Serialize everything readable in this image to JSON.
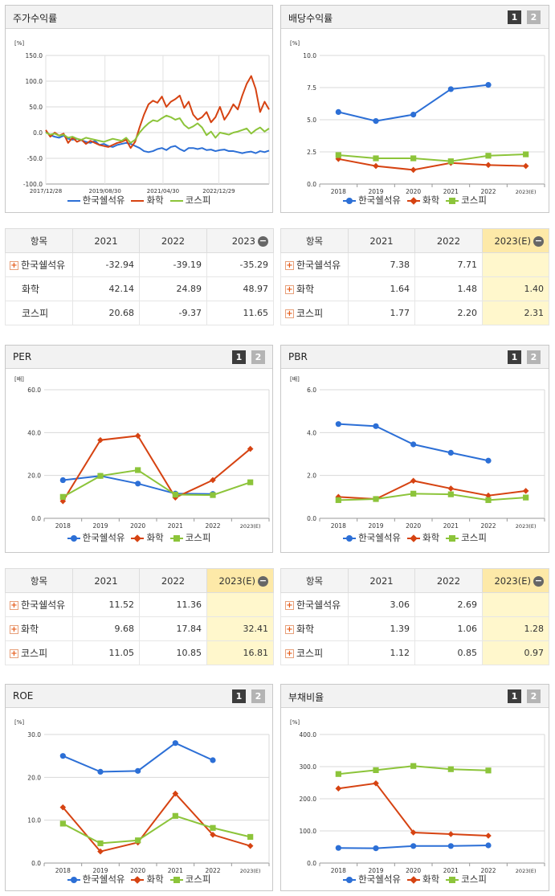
{
  "colors": {
    "company": "#2c6fd6",
    "industry": "#d64312",
    "kospi": "#8cc43a"
  },
  "legend": [
    "한국쉘석유",
    "화학",
    "코스피"
  ],
  "tabs": [
    "1",
    "2"
  ],
  "panels": {
    "price": {
      "title": "주가수익률",
      "unit": "[%]",
      "chart_data": {
        "type": "line",
        "ylim": [
          -100,
          150
        ],
        "yticks": [
          "150.0",
          "100.0",
          "50.0",
          "0.0",
          "-50.0",
          "-100.0"
        ],
        "xticks": [
          "2017/12/28",
          "2019/08/30",
          "2021/04/30",
          "2022/12/29"
        ],
        "x_range": [
          0,
          100
        ],
        "xtick_pos": [
          0,
          26.5,
          52.5,
          77.5
        ],
        "series": [
          {
            "name": "한국쉘석유",
            "x": [
              0,
              2,
              4,
              6,
              8,
              10,
              12,
              14,
              16,
              18,
              20,
              22,
              24,
              26,
              28,
              30,
              32,
              34,
              36,
              38,
              40,
              42,
              44,
              46,
              48,
              50,
              52,
              54,
              56,
              58,
              60,
              62,
              64,
              66,
              68,
              70,
              72,
              74,
              76,
              78,
              80,
              82,
              84,
              86,
              88,
              90,
              92,
              94,
              96,
              98,
              100
            ],
            "values": [
              2,
              -5,
              -8,
              -10,
              -6,
              -12,
              -14,
              -12,
              -15,
              -18,
              -20,
              -16,
              -24,
              -22,
              -26,
              -28,
              -24,
              -22,
              -20,
              -22,
              -26,
              -30,
              -36,
              -38,
              -36,
              -32,
              -30,
              -34,
              -28,
              -26,
              -32,
              -36,
              -30,
              -30,
              -32,
              -30,
              -34,
              -33,
              -36,
              -34,
              -33,
              -36,
              -36,
              -38,
              -40,
              -38,
              -37,
              -40,
              -36,
              -38,
              -35
            ]
          },
          {
            "name": "화학",
            "x": [
              0,
              2,
              4,
              6,
              8,
              10,
              12,
              14,
              16,
              18,
              20,
              22,
              24,
              26,
              28,
              30,
              32,
              34,
              36,
              38,
              40,
              42,
              44,
              46,
              48,
              50,
              52,
              54,
              56,
              58,
              60,
              62,
              64,
              66,
              68,
              70,
              72,
              74,
              76,
              78,
              80,
              82,
              84,
              86,
              88,
              90,
              92,
              94,
              96,
              98,
              100
            ],
            "values": [
              5,
              -8,
              0,
              -6,
              -2,
              -20,
              -10,
              -18,
              -14,
              -22,
              -16,
              -20,
              -24,
              -26,
              -28,
              -24,
              -20,
              -18,
              -14,
              -30,
              -18,
              10,
              35,
              55,
              62,
              58,
              70,
              50,
              60,
              65,
              72,
              48,
              60,
              35,
              25,
              30,
              40,
              20,
              30,
              50,
              25,
              38,
              55,
              45,
              72,
              95,
              110,
              85,
              40,
              60,
              45
            ]
          },
          {
            "name": "코스피",
            "x": [
              0,
              2,
              4,
              6,
              8,
              10,
              12,
              14,
              16,
              18,
              20,
              22,
              24,
              26,
              28,
              30,
              32,
              34,
              36,
              38,
              40,
              42,
              44,
              46,
              48,
              50,
              52,
              54,
              56,
              58,
              60,
              62,
              64,
              66,
              68,
              70,
              72,
              74,
              76,
              78,
              80,
              82,
              84,
              86,
              88,
              90,
              92,
              94,
              96,
              98,
              100
            ],
            "values": [
              0,
              -4,
              -2,
              -6,
              -4,
              -10,
              -8,
              -12,
              -14,
              -10,
              -12,
              -14,
              -16,
              -18,
              -15,
              -12,
              -14,
              -16,
              -10,
              -20,
              -14,
              0,
              10,
              18,
              24,
              22,
              28,
              33,
              30,
              25,
              28,
              15,
              8,
              12,
              18,
              10,
              -5,
              2,
              -10,
              0,
              -2,
              -4,
              0,
              2,
              5,
              8,
              -2,
              5,
              10,
              2,
              8
            ]
          }
        ]
      },
      "table": {
        "header": [
          "항목",
          "2021",
          "2022",
          "2023"
        ],
        "rows": [
          {
            "name": "한국쉘석유",
            "values": [
              "-32.94",
              "-39.19",
              "-35.29"
            ]
          },
          {
            "name": "화학",
            "values": [
              "42.14",
              "24.89",
              "48.97"
            ]
          },
          {
            "name": "코스피",
            "values": [
              "20.68",
              "-9.37",
              "11.65"
            ]
          }
        ]
      }
    },
    "dividend": {
      "title": "배당수익률",
      "unit": "[%]",
      "chart_data": {
        "type": "line",
        "ylim": [
          0,
          10
        ],
        "yticks": [
          "10.0",
          "7.5",
          "5.0",
          "2.5",
          "0.0"
        ],
        "categories": [
          "2018",
          "2019",
          "2020",
          "2021",
          "2022",
          "2023(E)"
        ],
        "series": [
          {
            "name": "한국쉘석유",
            "values": [
              5.6,
              4.9,
              5.4,
              7.38,
              7.71,
              null
            ]
          },
          {
            "name": "화학",
            "values": [
              1.95,
              1.4,
              1.1,
              1.64,
              1.48,
              1.4
            ]
          },
          {
            "name": "코스피",
            "values": [
              2.25,
              2.0,
              2.0,
              1.77,
              2.2,
              2.31
            ]
          }
        ]
      },
      "table": {
        "header": [
          "항목",
          "2021",
          "2022",
          "2023(E)"
        ],
        "rows": [
          {
            "name": "한국쉘석유",
            "values": [
              "7.38",
              "7.71",
              ""
            ]
          },
          {
            "name": "화학",
            "values": [
              "1.64",
              "1.48",
              "1.40"
            ]
          },
          {
            "name": "코스피",
            "values": [
              "1.77",
              "2.20",
              "2.31"
            ]
          }
        ]
      }
    },
    "per": {
      "title": "PER",
      "unit": "[배]",
      "chart_data": {
        "type": "line",
        "ylim": [
          0,
          60
        ],
        "yticks": [
          "60.0",
          "40.0",
          "20.0",
          "0.0"
        ],
        "categories": [
          "2018",
          "2019",
          "2020",
          "2021",
          "2022",
          "2023(E)"
        ],
        "series": [
          {
            "name": "한국쉘석유",
            "values": [
              17.8,
              19.8,
              16.2,
              11.52,
              11.36,
              null
            ]
          },
          {
            "name": "화학",
            "values": [
              8.0,
              36.5,
              38.5,
              9.68,
              17.84,
              32.41
            ]
          },
          {
            "name": "코스피",
            "values": [
              10.0,
              19.8,
              22.5,
              11.05,
              10.85,
              16.81
            ]
          }
        ]
      },
      "table": {
        "header": [
          "항목",
          "2021",
          "2022",
          "2023(E)"
        ],
        "rows": [
          {
            "name": "한국쉘석유",
            "values": [
              "11.52",
              "11.36",
              ""
            ]
          },
          {
            "name": "화학",
            "values": [
              "9.68",
              "17.84",
              "32.41"
            ]
          },
          {
            "name": "코스피",
            "values": [
              "11.05",
              "10.85",
              "16.81"
            ]
          }
        ]
      }
    },
    "pbr": {
      "title": "PBR",
      "unit": "[배]",
      "chart_data": {
        "type": "line",
        "ylim": [
          0,
          6
        ],
        "yticks": [
          "6.0",
          "4.0",
          "2.0",
          "0.0"
        ],
        "categories": [
          "2018",
          "2019",
          "2020",
          "2021",
          "2022",
          "2023(E)"
        ],
        "series": [
          {
            "name": "한국쉘석유",
            "values": [
              4.4,
              4.3,
              3.45,
              3.06,
              2.69,
              null
            ]
          },
          {
            "name": "화학",
            "values": [
              1.0,
              0.9,
              1.75,
              1.39,
              1.06,
              1.28
            ]
          },
          {
            "name": "코스피",
            "values": [
              0.85,
              0.9,
              1.15,
              1.12,
              0.85,
              0.97
            ]
          }
        ]
      },
      "table": {
        "header": [
          "항목",
          "2021",
          "2022",
          "2023(E)"
        ],
        "rows": [
          {
            "name": "한국쉘석유",
            "values": [
              "3.06",
              "2.69",
              ""
            ]
          },
          {
            "name": "화학",
            "values": [
              "1.39",
              "1.06",
              "1.28"
            ]
          },
          {
            "name": "코스피",
            "values": [
              "1.12",
              "0.85",
              "0.97"
            ]
          }
        ]
      }
    },
    "roe": {
      "title": "ROE",
      "unit": "[%]",
      "chart_data": {
        "type": "line",
        "ylim": [
          0,
          30
        ],
        "yticks": [
          "30.0",
          "20.0",
          "10.0",
          "0.0"
        ],
        "categories": [
          "2018",
          "2019",
          "2020",
          "2021",
          "2022",
          "2023(E)"
        ],
        "series": [
          {
            "name": "한국쉘석유",
            "values": [
              25.0,
              21.3,
              21.5,
              28.0,
              24.0,
              null
            ]
          },
          {
            "name": "화학",
            "values": [
              13.0,
              2.7,
              4.8,
              16.2,
              6.6,
              4.0
            ]
          },
          {
            "name": "코스피",
            "values": [
              9.2,
              4.6,
              5.3,
              11.0,
              8.2,
              6.1
            ]
          }
        ]
      }
    },
    "debt": {
      "title": "부채비율",
      "unit": "[%]",
      "chart_data": {
        "type": "line",
        "ylim": [
          0,
          400
        ],
        "yticks": [
          "400.0",
          "300.0",
          "200.0",
          "100.0",
          "0.0"
        ],
        "categories": [
          "2018",
          "2019",
          "2020",
          "2021",
          "2022",
          "2023(E)"
        ],
        "series": [
          {
            "name": "한국쉘석유",
            "values": [
              47,
              46,
              53,
              53,
              55,
              null
            ]
          },
          {
            "name": "화학",
            "values": [
              232,
              248,
              95,
              90,
              85,
              null
            ]
          },
          {
            "name": "코스피",
            "values": [
              277,
              289,
              302,
              292,
              288,
              null
            ]
          }
        ]
      }
    }
  }
}
